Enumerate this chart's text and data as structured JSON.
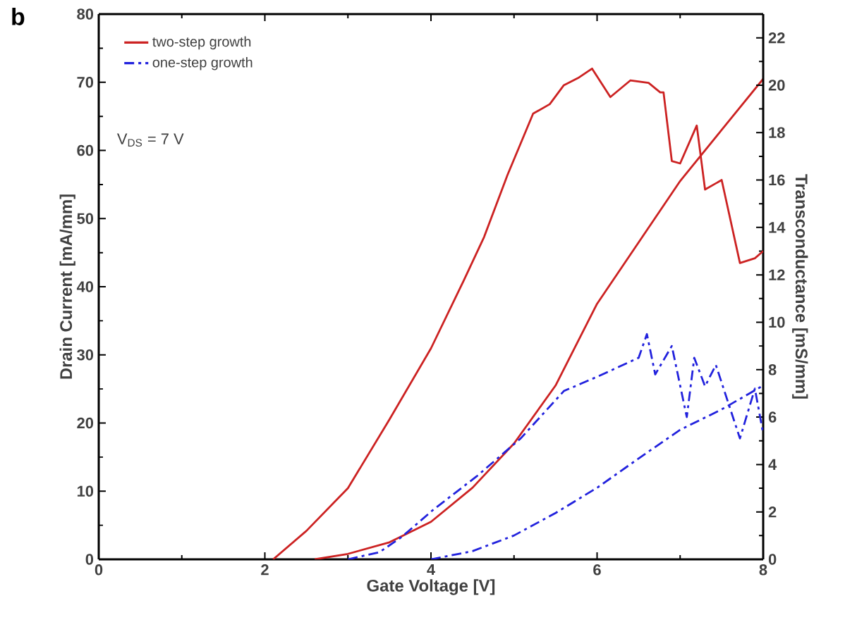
{
  "chart_data": {
    "type": "line",
    "xlabel": "Gate Voltage [V]",
    "ylabel": "Drain Current [mA/mm]",
    "y2label": "Transconductance [mS/mm]",
    "xlim": [
      0,
      8
    ],
    "xticks": [
      0,
      2,
      4,
      6,
      8
    ],
    "ylim": [
      0,
      80
    ],
    "yticks": [
      0,
      10,
      20,
      30,
      40,
      50,
      60,
      70,
      80
    ],
    "y2lim": [
      0,
      23
    ],
    "y2ticks": [
      0,
      2,
      4,
      6,
      8,
      10,
      12,
      14,
      16,
      18,
      20,
      22
    ],
    "legend": "top left",
    "grid": false,
    "marker": "none",
    "annotations": [
      "b",
      "V$_{DS}$ = 7 V"
    ],
    "series": [
      {
        "name": "two-step growth",
        "color": "#cc2222",
        "line_style": "solid",
        "x": [
          2.6,
          3.0,
          3.5,
          4.0,
          4.5,
          5.0,
          5.5,
          6.0,
          6.5,
          7.0,
          7.5,
          8.0
        ],
        "values": [
          0,
          0.8,
          2.5,
          5.5,
          10.5,
          17,
          25.5,
          37.5,
          46.5,
          55.5,
          63,
          70.5
        ]
      },
      {
        "name": "one-step growth",
        "color": "#2222dd",
        "line_style": "dashdot",
        "x": [
          4.0,
          4.5,
          5.0,
          5.5,
          6.0,
          6.5,
          7.0,
          7.5,
          8.0
        ],
        "values": [
          0,
          1.2,
          3.5,
          6.8,
          10.5,
          14.8,
          19,
          22,
          25.5
        ]
      },
      {
        "color": "#cc2222",
        "line_style": "solid",
        "axis": "y2",
        "x": [
          2.1,
          2.5,
          3.0,
          3.5,
          4.0,
          4.4,
          4.64,
          4.92,
          5.23,
          5.43,
          5.6,
          5.77,
          5.94,
          6.16,
          6.4,
          6.62,
          6.76,
          6.8,
          6.9,
          7.0,
          7.2,
          7.3,
          7.5,
          7.72,
          7.9,
          8.0
        ],
        "values": [
          0,
          1.2,
          3.0,
          5.9,
          8.9,
          11.8,
          13.6,
          16.2,
          18.8,
          19.2,
          20.0,
          20.3,
          20.7,
          19.5,
          20.2,
          20.1,
          19.7,
          19.7,
          16.8,
          16.7,
          18.3,
          15.6,
          16.0,
          12.5,
          12.7,
          13.0
        ]
      },
      {
        "color": "#2222dd",
        "line_style": "dashdot",
        "axis": "y2",
        "x": [
          3.0,
          3.38,
          3.65,
          4.03,
          4.55,
          5.08,
          5.6,
          6.0,
          6.5,
          6.6,
          6.7,
          6.9,
          7.08,
          7.17,
          7.3,
          7.43,
          7.72,
          7.9,
          8.0
        ],
        "values": [
          0,
          0.3,
          0.95,
          2.1,
          3.5,
          5.1,
          7.1,
          7.7,
          8.5,
          9.5,
          7.8,
          9.0,
          6.0,
          8.5,
          7.3,
          8.2,
          5.1,
          7.2,
          5.3
        ]
      }
    ]
  }
}
